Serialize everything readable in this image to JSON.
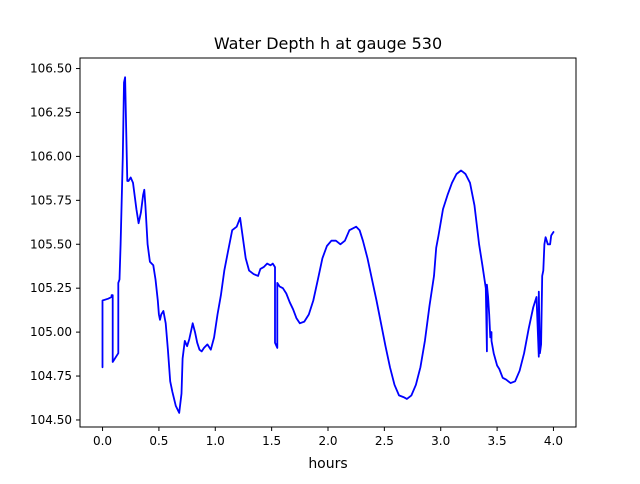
{
  "chart_data": {
    "type": "line",
    "title": "Water Depth h at gauge 530",
    "xlabel": "hours",
    "ylabel": "",
    "xlim": [
      -0.2,
      4.2
    ],
    "ylim": [
      104.46,
      106.56
    ],
    "xticks": [
      0.0,
      0.5,
      1.0,
      1.5,
      2.0,
      2.5,
      3.0,
      3.5,
      4.0
    ],
    "xtick_labels": [
      "0.0",
      "0.5",
      "1.0",
      "1.5",
      "2.0",
      "2.5",
      "3.0",
      "3.5",
      "4.0"
    ],
    "yticks": [
      104.5,
      104.75,
      105.0,
      105.25,
      105.5,
      105.75,
      106.0,
      106.25,
      106.5
    ],
    "ytick_labels": [
      "104.50",
      "104.75",
      "105.00",
      "105.25",
      "105.50",
      "105.75",
      "106.00",
      "106.25",
      "106.50"
    ],
    "grid": false,
    "series": [
      {
        "color": "#0000ff",
        "x": [
          0.0,
          0.0,
          0.05,
          0.08,
          0.08,
          0.09,
          0.09,
          0.14,
          0.14,
          0.15,
          0.16,
          0.18,
          0.19,
          0.2,
          0.21,
          0.22,
          0.23,
          0.25,
          0.27,
          0.3,
          0.32,
          0.34,
          0.36,
          0.37,
          0.38,
          0.4,
          0.42,
          0.45,
          0.47,
          0.49,
          0.5,
          0.51,
          0.52,
          0.54,
          0.56,
          0.58,
          0.6,
          0.62,
          0.65,
          0.68,
          0.7,
          0.71,
          0.73,
          0.75,
          0.77,
          0.79,
          0.8,
          0.82,
          0.84,
          0.86,
          0.88,
          0.9,
          0.93,
          0.96,
          0.99,
          1.02,
          1.05,
          1.08,
          1.11,
          1.15,
          1.19,
          1.22,
          1.24,
          1.27,
          1.3,
          1.34,
          1.38,
          1.4,
          1.43,
          1.46,
          1.49,
          1.51,
          1.53,
          1.53,
          1.55,
          1.55,
          1.57,
          1.6,
          1.63,
          1.66,
          1.69,
          1.72,
          1.75,
          1.79,
          1.83,
          1.87,
          1.91,
          1.95,
          1.99,
          2.03,
          2.07,
          2.11,
          2.15,
          2.19,
          2.22,
          2.25,
          2.28,
          2.31,
          2.35,
          2.39,
          2.43,
          2.47,
          2.51,
          2.55,
          2.59,
          2.63,
          2.67,
          2.7,
          2.74,
          2.78,
          2.82,
          2.86,
          2.9,
          2.94,
          2.95,
          2.96,
          2.98,
          3.02,
          3.06,
          3.1,
          3.14,
          3.18,
          3.2,
          3.22,
          3.26,
          3.3,
          3.34,
          3.37,
          3.4,
          3.41,
          3.41,
          3.41,
          3.42,
          3.43,
          3.44,
          3.45,
          3.45,
          3.47,
          3.5,
          3.52,
          3.55,
          3.58,
          3.62,
          3.66,
          3.7,
          3.74,
          3.78,
          3.82,
          3.85,
          3.87,
          3.87,
          3.88,
          3.89,
          3.9,
          3.91,
          3.92,
          3.93,
          3.94,
          3.95,
          3.97,
          3.98,
          4.0
        ],
        "y": [
          104.8,
          105.18,
          105.19,
          105.2,
          105.21,
          105.21,
          104.83,
          104.88,
          105.28,
          105.3,
          105.5,
          106.0,
          106.42,
          106.45,
          106.15,
          105.86,
          105.86,
          105.88,
          105.85,
          105.7,
          105.62,
          105.68,
          105.78,
          105.81,
          105.72,
          105.5,
          105.4,
          105.38,
          105.3,
          105.18,
          105.1,
          105.07,
          105.1,
          105.12,
          105.05,
          104.9,
          104.72,
          104.66,
          104.58,
          104.54,
          104.65,
          104.85,
          104.95,
          104.92,
          104.96,
          105.02,
          105.05,
          105.0,
          104.94,
          104.9,
          104.89,
          104.91,
          104.93,
          104.9,
          104.97,
          105.1,
          105.21,
          105.35,
          105.45,
          105.58,
          105.6,
          105.65,
          105.56,
          105.42,
          105.35,
          105.33,
          105.32,
          105.36,
          105.37,
          105.39,
          105.38,
          105.39,
          105.37,
          104.94,
          104.91,
          105.28,
          105.26,
          105.25,
          105.22,
          105.17,
          105.13,
          105.08,
          105.05,
          105.06,
          105.1,
          105.18,
          105.3,
          105.42,
          105.49,
          105.52,
          105.52,
          105.5,
          105.52,
          105.58,
          105.59,
          105.6,
          105.58,
          105.52,
          105.42,
          105.3,
          105.18,
          105.05,
          104.92,
          104.8,
          104.7,
          104.64,
          104.63,
          104.62,
          104.64,
          104.7,
          104.8,
          104.95,
          105.15,
          105.32,
          105.4,
          105.48,
          105.55,
          105.7,
          105.78,
          105.85,
          105.9,
          105.92,
          105.91,
          105.9,
          105.85,
          105.72,
          105.5,
          105.38,
          105.25,
          104.9,
          104.89,
          105.27,
          105.2,
          105.1,
          104.97,
          105.0,
          104.95,
          104.88,
          104.81,
          104.79,
          104.74,
          104.73,
          104.71,
          104.72,
          104.78,
          104.88,
          105.02,
          105.14,
          105.2,
          104.86,
          105.23,
          104.88,
          104.93,
          105.32,
          105.35,
          105.5,
          105.54,
          105.52,
          105.5,
          105.5,
          105.55,
          105.57
        ]
      }
    ]
  }
}
